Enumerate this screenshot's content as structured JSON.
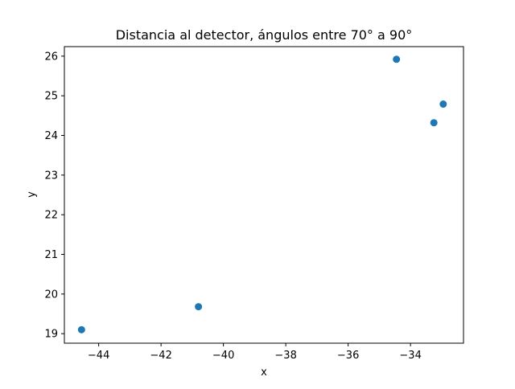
{
  "chart_data": {
    "type": "scatter",
    "title": "Distancia al detector, ángulos entre 70° a 90°",
    "xlabel": "x",
    "ylabel": "y",
    "xlim": [
      -45.1,
      -32.3
    ],
    "ylim": [
      18.76,
      26.24
    ],
    "x_ticks": [
      -44,
      -42,
      -40,
      -38,
      -36,
      -34
    ],
    "x_tick_labels": [
      "−44",
      "−42",
      "−40",
      "−38",
      "−36",
      "−34"
    ],
    "y_ticks": [
      19,
      20,
      21,
      22,
      23,
      24,
      25,
      26
    ],
    "y_tick_labels": [
      "19",
      "20",
      "21",
      "22",
      "23",
      "24",
      "25",
      "26"
    ],
    "series": [
      {
        "x": [
          -44.55,
          -40.8,
          -34.45,
          -33.25,
          -32.95
        ],
        "y": [
          19.1,
          19.68,
          25.92,
          24.32,
          24.79
        ],
        "color": "#1f77b4"
      }
    ],
    "grid": false,
    "legend": "none"
  }
}
